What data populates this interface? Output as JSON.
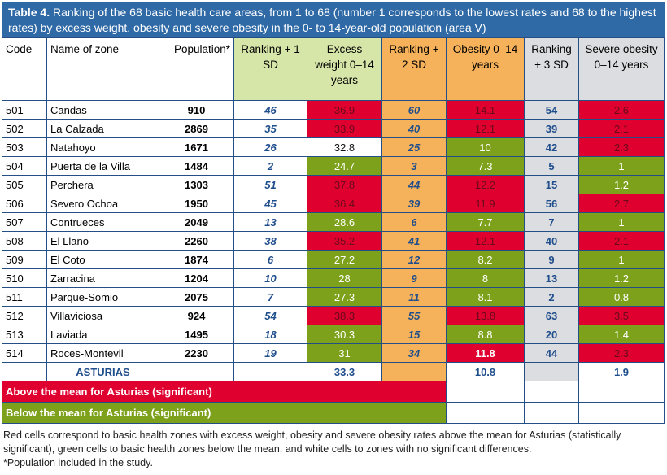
{
  "title": {
    "bold": "Table 4.",
    "text": " Ranking of the 68 basic health care areas, from 1 to 68 (number 1 corresponds to the lowest rates and 68 to the highest rates) by excess weight, obesity and severe obesity in the 0- to 14-year-old population (area V)"
  },
  "headers": [
    "Code",
    "Name of zone",
    "Population*",
    "Ranking + 1 SD",
    "Excess weight 0–14 years",
    "Ranking + 2 SD",
    "Obesity 0–14 years",
    "Ranking + 3 SD",
    "Severe obesity 0–14 years"
  ],
  "rows": [
    {
      "code": "501",
      "name": "Candas",
      "pop": "910",
      "r1": "46",
      "ew": "36.9",
      "ewc": "R",
      "r2": "60",
      "ob": "14.1",
      "obc": "R",
      "r3": "54",
      "so": "2.6",
      "soc": "R"
    },
    {
      "code": "502",
      "name": "La Calzada",
      "pop": "2869",
      "r1": "35",
      "ew": "33.9",
      "ewc": "R",
      "r2": "40",
      "ob": "12.1",
      "obc": "R",
      "r3": "39",
      "so": "2.1",
      "soc": "R"
    },
    {
      "code": "503",
      "name": "Natahoyo",
      "pop": "1671",
      "r1": "26",
      "ew": "32.8",
      "ewc": "W",
      "r2": "25",
      "ob": "10",
      "obc": "G",
      "r3": "42",
      "so": "2.3",
      "soc": "R"
    },
    {
      "code": "504",
      "name": "Puerta de la Villa",
      "pop": "1484",
      "r1": "2",
      "ew": "24.7",
      "ewc": "G",
      "r2": "3",
      "ob": "7.3",
      "obc": "G",
      "r3": "5",
      "so": "1",
      "soc": "G"
    },
    {
      "code": "505",
      "name": "Perchera",
      "pop": "1303",
      "r1": "51",
      "ew": "37.8",
      "ewc": "R",
      "r2": "44",
      "ob": "12.2",
      "obc": "R",
      "r3": "15",
      "so": "1.2",
      "soc": "G"
    },
    {
      "code": "506",
      "name": "Severo Ochoa",
      "pop": "1950",
      "r1": "45",
      "ew": "36.4",
      "ewc": "R",
      "r2": "39",
      "ob": "11.9",
      "obc": "R",
      "r3": "56",
      "so": "2.7",
      "soc": "R"
    },
    {
      "code": "507",
      "name": "Contrueces",
      "pop": "2049",
      "r1": "13",
      "ew": "28.6",
      "ewc": "G",
      "r2": "6",
      "ob": "7.7",
      "obc": "G",
      "r3": "7",
      "so": "1",
      "soc": "G"
    },
    {
      "code": "508",
      "name": "El Llano",
      "pop": "2260",
      "r1": "38",
      "ew": "35.2",
      "ewc": "R",
      "r2": "41",
      "ob": "12.1",
      "obc": "R",
      "r3": "40",
      "so": "2.1",
      "soc": "R"
    },
    {
      "code": "509",
      "name": "El Coto",
      "pop": "1874",
      "r1": "6",
      "ew": "27.2",
      "ewc": "G",
      "r2": "12",
      "ob": "8.2",
      "obc": "G",
      "r3": "9",
      "so": "1",
      "soc": "G"
    },
    {
      "code": "510",
      "name": "Zarracina",
      "pop": "1204",
      "r1": "10",
      "ew": "28",
      "ewc": "G",
      "r2": "9",
      "ob": "8",
      "obc": "G",
      "r3": "13",
      "so": "1.2",
      "soc": "G"
    },
    {
      "code": "511",
      "name": "Parque-Somio",
      "pop": "2075",
      "r1": "7",
      "ew": "27.3",
      "ewc": "G",
      "r2": "11",
      "ob": "8.1",
      "obc": "G",
      "r3": "2",
      "so": "0.8",
      "soc": "G"
    },
    {
      "code": "512",
      "name": "Villaviciosa",
      "pop": "924",
      "r1": "54",
      "ew": "38.3",
      "ewc": "R",
      "r2": "55",
      "ob": "13.8",
      "obc": "R",
      "r3": "63",
      "so": "3.5",
      "soc": "R"
    },
    {
      "code": "513",
      "name": "Laviada",
      "pop": "1495",
      "r1": "18",
      "ew": "30.3",
      "ewc": "G",
      "r2": "15",
      "ob": "8.8",
      "obc": "G",
      "r3": "20",
      "so": "1.4",
      "soc": "G"
    },
    {
      "code": "514",
      "name": "Roces-Montevil",
      "pop": "2230",
      "r1": "19",
      "ew": "31",
      "ewc": "G",
      "r2": "34",
      "ob": "11.8",
      "obc": "R",
      "r3": "44",
      "so": "2.3",
      "soc": "R"
    }
  ],
  "total": {
    "name": "ASTURIAS",
    "ew": "33.3",
    "ob": "10.8",
    "so": "1.9"
  },
  "legend": {
    "above": "Above the mean for Asturias (significant)",
    "below": "Below the mean for Asturias (significant)"
  },
  "notes": [
    "Red cells correspond to basic health zones with excess weight, obesity and severe obesity rates above the mean for Asturias (statistically significant), green cells to basic health zones below the mean, and white cells to zones with no significant differences.",
    "*Population included in the study."
  ],
  "colors": {
    "red": "#df0030",
    "green": "#7ea11c",
    "header_blue": "#2f6aa6",
    "orange": "#f6b25a",
    "light_green": "#d6e5a8",
    "grey": "#dcdde0"
  }
}
